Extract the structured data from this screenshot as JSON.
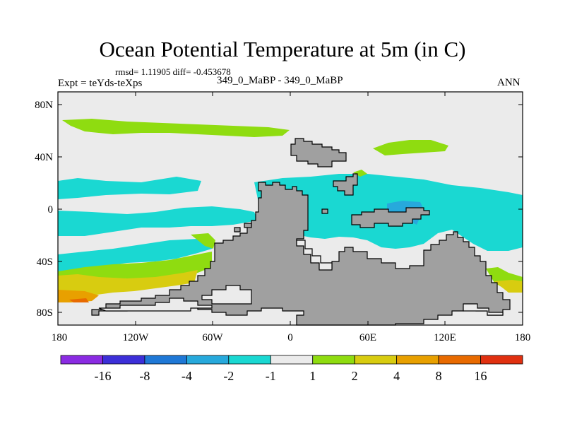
{
  "title": "Ocean Potential Temperature at 5m (in C)",
  "stats": "rmsd= 1.11905 diff= -0.453678",
  "expt_label": "Expt = teYds-teXps",
  "subtitle": "349_0_MaBP - 349_0_MaBP",
  "season": "ANN",
  "map": {
    "lat_ticks": [
      "80N",
      "40N",
      "0",
      "40S",
      "80S"
    ],
    "lon_ticks": [
      "180",
      "120W",
      "60W",
      "0",
      "60E",
      "120E",
      "180"
    ]
  },
  "colorbar": {
    "labels": [
      "-16",
      "-8",
      "-4",
      "-2",
      "-1",
      "1",
      "2",
      "4",
      "8",
      "16"
    ],
    "colors": [
      "#8a2be2",
      "#3c2fd8",
      "#1f78d6",
      "#27a9dc",
      "#1ad8d2",
      "#ebebeb",
      "#8fdc10",
      "#d8cc10",
      "#e8a000",
      "#e86a00",
      "#e03010"
    ]
  },
  "colors": {
    "land": "#a0a0a0",
    "neutral": "#ebebeb",
    "cyan": "#1ad8d2",
    "light_blue": "#27a9dc",
    "green": "#8fdc10",
    "yellow": "#d8cc10",
    "orange": "#e8a000",
    "red_orange": "#e86a00"
  }
}
